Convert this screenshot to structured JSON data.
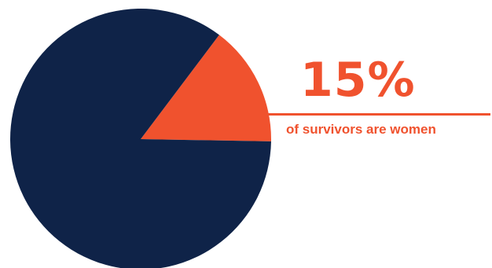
{
  "colors": {
    "majority": "#0f2348",
    "highlight": "#f0522e",
    "background": "#ffffff"
  },
  "callout": {
    "value_text": "15%",
    "caption": "of survivors are women"
  },
  "chart_data": {
    "type": "pie",
    "title": "",
    "slices": [
      {
        "value": 15,
        "color": "#f0522e"
      },
      {
        "value": 85,
        "color": "#0f2348"
      }
    ]
  }
}
